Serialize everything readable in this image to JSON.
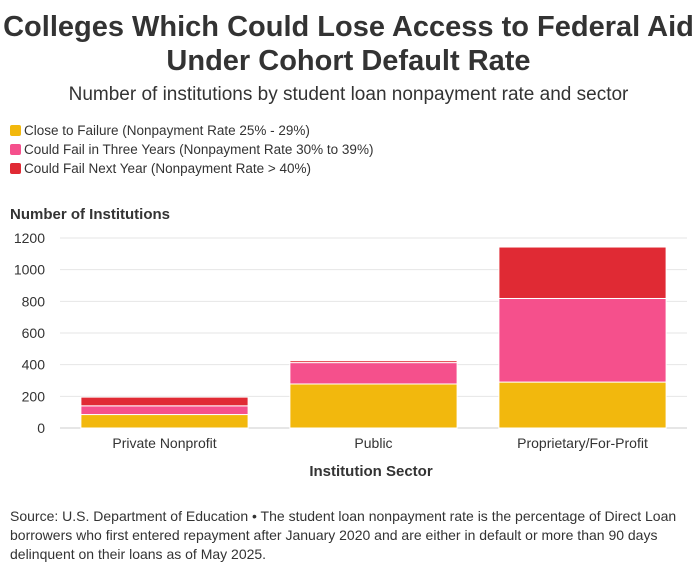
{
  "chart_data": {
    "type": "bar",
    "stacked": true,
    "title": "Colleges Which Could Lose Access to Federal Aid Under Cohort Default Rate",
    "subtitle": "Number of institutions by student loan nonpayment rate and sector",
    "xlabel": "Institution Sector",
    "ylabel": "Number of Institutions",
    "ylim": [
      0,
      1200
    ],
    "yticks": [
      0,
      200,
      400,
      600,
      800,
      1000,
      1200
    ],
    "grid": true,
    "legend_position": "top-left",
    "categories": [
      "Private Nonprofit",
      "Public",
      "Proprietary/For-Profit"
    ],
    "series": [
      {
        "name": "Close to Failure (Nonpayment Rate 25% - 29%)",
        "color": "#f2b80d",
        "values": [
          85,
          278,
          290
        ]
      },
      {
        "name": "Could Fail in Three Years (Nonpayment Rate 30% to 39%)",
        "color": "#f5508c",
        "values": [
          55,
          135,
          528
        ]
      },
      {
        "name": "Could Fail Next Year (Nonpayment Rate > 40%)",
        "color": "#e02a34",
        "values": [
          55,
          12,
          325
        ]
      }
    ]
  },
  "source": "Source: U.S. Department of Education • The student loan nonpayment rate is the percentage of Direct Loan borrowers who first entered repayment after January 2020 and are either in default or more than 90 days delinquent on their loans as of May 2025."
}
